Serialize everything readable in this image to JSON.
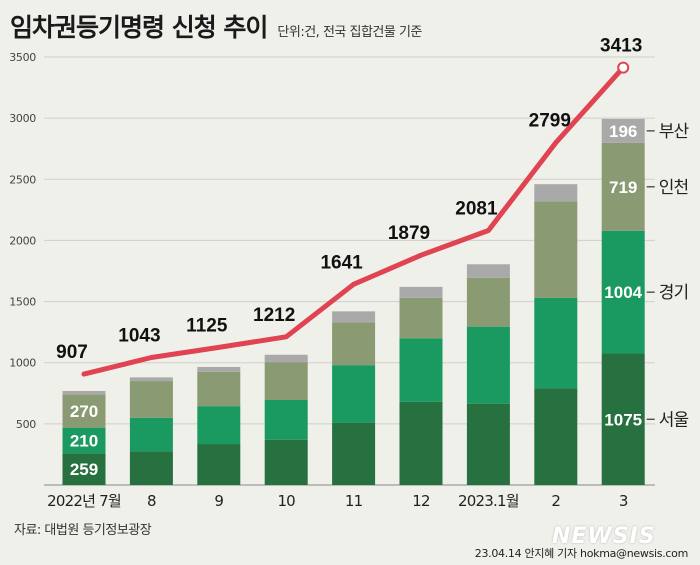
{
  "title": "임차권등기명령 신청 추이",
  "unit_note": "단위:건, 전국 집합건물 기준",
  "source": "자료: 대법원 등기정보광장",
  "credit": "23.04.14 안지혜 기자 hokma@newsis.com",
  "watermark": "NEWSIS",
  "colors": {
    "background": "#f0f0ea",
    "seoul": "#27703f",
    "gyeonggi": "#1a9960",
    "incheon": "#8a9a73",
    "busan": "#a9a9a9",
    "line": "#e04452",
    "gridline": "#d0d0cb"
  },
  "chart_data": {
    "type": "bar+line",
    "categories": [
      "2022년 7월",
      "8",
      "9",
      "10",
      "11",
      "12",
      "2023.1월",
      "2",
      "3"
    ],
    "ylim": [
      0,
      3500
    ],
    "yticks": [
      500,
      1000,
      1500,
      2000,
      2500,
      3000,
      3500
    ],
    "series": [
      {
        "name": "서울",
        "values": [
          259,
          275,
          335,
          370,
          510,
          680,
          665,
          790,
          1075
        ]
      },
      {
        "name": "경기",
        "values": [
          210,
          275,
          310,
          325,
          470,
          520,
          630,
          740,
          1004
        ]
      },
      {
        "name": "인천",
        "values": [
          270,
          300,
          280,
          310,
          350,
          330,
          400,
          790,
          719
        ]
      },
      {
        "name": "부산",
        "values": [
          30,
          30,
          40,
          60,
          90,
          90,
          110,
          140,
          196
        ]
      }
    ],
    "total_line": {
      "name": "전국",
      "values": [
        907,
        1043,
        1125,
        1212,
        1641,
        1879,
        2081,
        2799,
        3413
      ]
    },
    "inner_labels": {
      "0": [
        "259",
        "210",
        "270",
        null
      ],
      "8": [
        "1075",
        "1004",
        "719",
        "196"
      ]
    },
    "side_labels": [
      "서울",
      "경기",
      "인천",
      "부산"
    ]
  }
}
